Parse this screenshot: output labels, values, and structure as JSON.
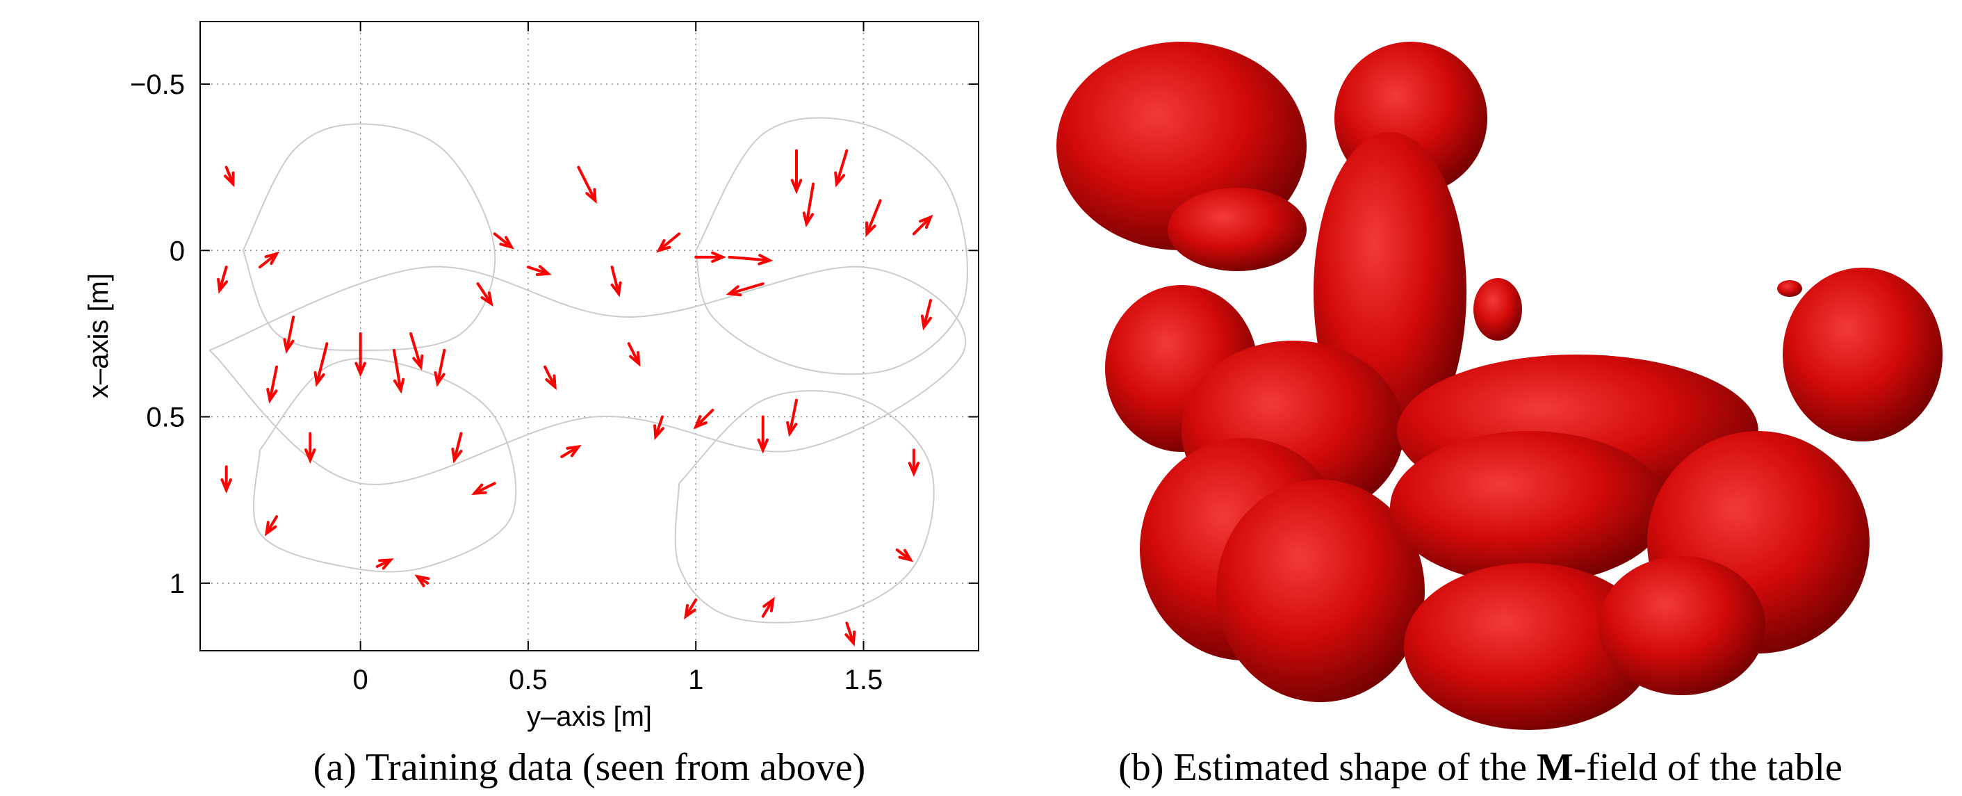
{
  "chart_data": {
    "type": "quiver",
    "xlabel": "y–axis [m]",
    "ylabel": "x–axis [m]",
    "xlim": [
      -0.478,
      1.843
    ],
    "ylim": [
      -0.688,
      1.203
    ],
    "y_inverted": true,
    "xticks": [
      0,
      0.5,
      1,
      1.5
    ],
    "yticks": [
      {
        "value": -0.5,
        "label": "−0.5"
      },
      0,
      0.5,
      1
    ],
    "grid": true,
    "arrow_color": "#ff0000",
    "trajectory_color": "#cccccc",
    "trajectories": [
      {
        "x": [
          -0.35,
          -0.2,
          0,
          0.25,
          0.4,
          0.3,
          0,
          -0.25,
          -0.35
        ],
        "y": [
          0,
          -0.3,
          -0.38,
          -0.3,
          0,
          0.25,
          0.3,
          0.25,
          0
        ]
      },
      {
        "x": [
          -0.3,
          -0.1,
          0.15,
          0.4,
          0.45,
          0.2,
          -0.05,
          -0.3,
          -0.3
        ],
        "y": [
          0.6,
          0.35,
          0.35,
          0.5,
          0.8,
          0.95,
          0.95,
          0.85,
          0.6
        ]
      },
      {
        "x": [
          1.0,
          1.2,
          1.5,
          1.75,
          1.8,
          1.6,
          1.3,
          1.05,
          1.0
        ],
        "y": [
          0,
          -0.35,
          -0.38,
          -0.2,
          0.15,
          0.35,
          0.35,
          0.2,
          0
        ]
      },
      {
        "x": [
          0.95,
          1.2,
          1.5,
          1.7,
          1.65,
          1.4,
          1.1,
          0.95,
          0.95
        ],
        "y": [
          0.7,
          0.45,
          0.45,
          0.65,
          0.95,
          1.1,
          1.1,
          0.95,
          0.7
        ]
      },
      {
        "x": [
          -0.45,
          0.2,
          0.8,
          1.5,
          1.8,
          1.3,
          0.7,
          0,
          -0.45
        ],
        "y": [
          0.3,
          0.05,
          0.2,
          0.05,
          0.3,
          0.6,
          0.5,
          0.7,
          0.3
        ]
      }
    ],
    "arrows": {
      "x": [
        -0.4,
        -0.3,
        -0.2,
        -0.1,
        0,
        0.1,
        0.15,
        0.25,
        0.35,
        0.4,
        0.5,
        0.65,
        0.75,
        0.95,
        1.0,
        1.1,
        1.2,
        1.3,
        1.35,
        1.45,
        1.55,
        1.65,
        1.7,
        1.3,
        1.2,
        1.05,
        0.9,
        0.6,
        0.4,
        0.3,
        -0.15,
        -0.25,
        -0.4,
        -0.25,
        0.05,
        0.2,
        1.0,
        1.2,
        1.45,
        1.6,
        1.65,
        0.55,
        0.8,
        -0.4
      ],
      "y": [
        -0.25,
        0.05,
        0.2,
        0.28,
        0.25,
        0.3,
        0.25,
        0.3,
        0.1,
        -0.05,
        0.05,
        -0.25,
        0.05,
        -0.05,
        0.02,
        0.02,
        0.1,
        -0.3,
        -0.2,
        -0.3,
        -0.15,
        -0.05,
        0.15,
        0.45,
        0.5,
        0.48,
        0.5,
        0.62,
        0.7,
        0.55,
        0.55,
        0.35,
        0.65,
        0.8,
        0.95,
        1.0,
        1.05,
        1.1,
        1.12,
        0.9,
        0.6,
        0.35,
        0.28,
        0.05
      ],
      "u": [
        0.02,
        0.05,
        -0.02,
        -0.03,
        0,
        0.02,
        0.03,
        -0.02,
        0.04,
        0.05,
        0.06,
        0.05,
        0.02,
        -0.06,
        0.08,
        0.12,
        -0.1,
        0,
        -0.02,
        -0.03,
        -0.04,
        0.05,
        -0.02,
        -0.02,
        0,
        -0.05,
        -0.02,
        0.05,
        -0.06,
        -0.02,
        0,
        -0.02,
        0,
        -0.03,
        0.04,
        -0.03,
        -0.03,
        0.03,
        0.02,
        0.04,
        0,
        0.03,
        0.03,
        -0.02
      ],
      "v": [
        0.05,
        -0.04,
        0.1,
        0.12,
        0.12,
        0.12,
        0.1,
        0.1,
        0.06,
        0.04,
        0.02,
        0.1,
        0.08,
        0.05,
        0,
        0.01,
        0.03,
        0.12,
        0.12,
        0.1,
        0.1,
        -0.05,
        0.08,
        0.1,
        0.1,
        0.05,
        0.06,
        -0.03,
        0.03,
        0.08,
        0.08,
        0.1,
        0.07,
        0.05,
        -0.02,
        -0.02,
        0.05,
        -0.05,
        0.06,
        0.03,
        0.07,
        0.06,
        0.06,
        0.07
      ]
    }
  },
  "captions": {
    "a": "(a) Training data (seen from above)",
    "b_start": "(b) Estimated shape of the ",
    "b_bold": "M",
    "b_end": "-field of the table"
  }
}
